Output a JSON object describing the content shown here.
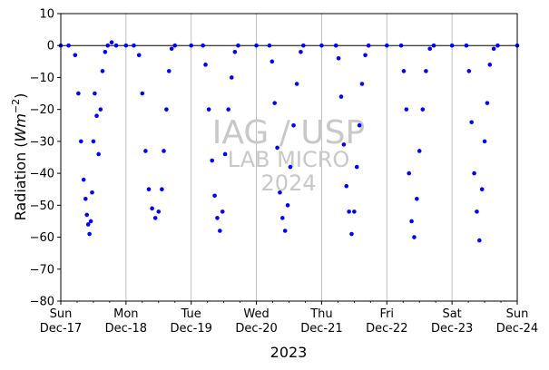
{
  "chart_data": {
    "type": "scatter",
    "title": "",
    "xlabel": "2023",
    "ylabel": "Radiation (Wm⁻²)",
    "ylabel_main": "Radiation (",
    "ylabel_unit": "Wm",
    "ylabel_exp": "−2",
    "ylabel_close": ")",
    "ylim": [
      -80,
      10
    ],
    "yticks": [
      10,
      0,
      -10,
      -20,
      -30,
      -40,
      -50,
      -60,
      -70,
      -80
    ],
    "ytick_labels": [
      "10",
      "0",
      "−10",
      "−20",
      "−30",
      "−40",
      "−50",
      "−60",
      "−70",
      "−80"
    ],
    "xlim_days": [
      0,
      7
    ],
    "xticks": [
      {
        "day": 0,
        "line1": "Sun",
        "line2": "Dec-17"
      },
      {
        "day": 1,
        "line1": "Mon",
        "line2": "Dec-18"
      },
      {
        "day": 2,
        "line1": "Tue",
        "line2": "Dec-19"
      },
      {
        "day": 3,
        "line1": "Wed",
        "line2": "Dec-20"
      },
      {
        "day": 4,
        "line1": "Thu",
        "line2": "Dec-21"
      },
      {
        "day": 5,
        "line1": "Fri",
        "line2": "Dec-22"
      },
      {
        "day": 6,
        "line1": "Sat",
        "line2": "Dec-23"
      },
      {
        "day": 7,
        "line1": "Sun",
        "line2": "Dec-24"
      }
    ],
    "vertical_grid": true,
    "zero_line": true,
    "marker_color": "#0000ff",
    "series": [
      {
        "values": [
          {
            "day": 0.0,
            "y": 0
          },
          {
            "day": 0.12,
            "y": 0
          },
          {
            "day": 0.22,
            "y": -3
          },
          {
            "day": 0.27,
            "y": -15
          },
          {
            "day": 0.31,
            "y": -30
          },
          {
            "day": 0.35,
            "y": -42
          },
          {
            "day": 0.38,
            "y": -48
          },
          {
            "day": 0.4,
            "y": -53
          },
          {
            "day": 0.42,
            "y": -56
          },
          {
            "day": 0.44,
            "y": -59
          },
          {
            "day": 0.46,
            "y": -55
          },
          {
            "day": 0.48,
            "y": -46
          },
          {
            "day": 0.5,
            "y": -30
          },
          {
            "day": 0.52,
            "y": -15
          },
          {
            "day": 0.55,
            "y": -22
          },
          {
            "day": 0.58,
            "y": -34
          },
          {
            "day": 0.61,
            "y": -20
          },
          {
            "day": 0.64,
            "y": -8
          },
          {
            "day": 0.68,
            "y": -2
          },
          {
            "day": 0.72,
            "y": 0
          },
          {
            "day": 0.78,
            "y": 1
          },
          {
            "day": 0.85,
            "y": 0
          },
          {
            "day": 1.0,
            "y": 0
          },
          {
            "day": 1.12,
            "y": 0
          },
          {
            "day": 1.2,
            "y": -3
          },
          {
            "day": 1.25,
            "y": -15
          },
          {
            "day": 1.3,
            "y": -33
          },
          {
            "day": 1.35,
            "y": -45
          },
          {
            "day": 1.4,
            "y": -51
          },
          {
            "day": 1.45,
            "y": -54
          },
          {
            "day": 1.5,
            "y": -52
          },
          {
            "day": 1.55,
            "y": -45
          },
          {
            "day": 1.58,
            "y": -33
          },
          {
            "day": 1.62,
            "y": -20
          },
          {
            "day": 1.66,
            "y": -8
          },
          {
            "day": 1.7,
            "y": -1
          },
          {
            "day": 1.75,
            "y": 0
          },
          {
            "day": 2.0,
            "y": 0
          },
          {
            "day": 2.18,
            "y": 0
          },
          {
            "day": 2.22,
            "y": -6
          },
          {
            "day": 2.27,
            "y": -20
          },
          {
            "day": 2.32,
            "y": -36
          },
          {
            "day": 2.36,
            "y": -47
          },
          {
            "day": 2.4,
            "y": -54
          },
          {
            "day": 2.44,
            "y": -58
          },
          {
            "day": 2.48,
            "y": -52
          },
          {
            "day": 2.52,
            "y": -34
          },
          {
            "day": 2.57,
            "y": -20
          },
          {
            "day": 2.62,
            "y": -10
          },
          {
            "day": 2.67,
            "y": -2
          },
          {
            "day": 2.72,
            "y": 0
          },
          {
            "day": 3.0,
            "y": 0
          },
          {
            "day": 3.2,
            "y": 0
          },
          {
            "day": 3.24,
            "y": -5
          },
          {
            "day": 3.28,
            "y": -18
          },
          {
            "day": 3.32,
            "y": -32
          },
          {
            "day": 3.36,
            "y": -46
          },
          {
            "day": 3.4,
            "y": -54
          },
          {
            "day": 3.44,
            "y": -58
          },
          {
            "day": 3.48,
            "y": -50
          },
          {
            "day": 3.52,
            "y": -38
          },
          {
            "day": 3.57,
            "y": -25
          },
          {
            "day": 3.62,
            "y": -12
          },
          {
            "day": 3.68,
            "y": -2
          },
          {
            "day": 3.72,
            "y": 0
          },
          {
            "day": 4.0,
            "y": 0
          },
          {
            "day": 4.22,
            "y": 0
          },
          {
            "day": 4.26,
            "y": -4
          },
          {
            "day": 4.3,
            "y": -16
          },
          {
            "day": 4.34,
            "y": -31
          },
          {
            "day": 4.38,
            "y": -44
          },
          {
            "day": 4.42,
            "y": -52
          },
          {
            "day": 4.46,
            "y": -59
          },
          {
            "day": 4.5,
            "y": -52
          },
          {
            "day": 4.54,
            "y": -38
          },
          {
            "day": 4.58,
            "y": -25
          },
          {
            "day": 4.62,
            "y": -12
          },
          {
            "day": 4.67,
            "y": -3
          },
          {
            "day": 4.72,
            "y": 0
          },
          {
            "day": 5.0,
            "y": 0
          },
          {
            "day": 5.22,
            "y": 0
          },
          {
            "day": 5.26,
            "y": -8
          },
          {
            "day": 5.3,
            "y": -20
          },
          {
            "day": 5.34,
            "y": -40
          },
          {
            "day": 5.38,
            "y": -55
          },
          {
            "day": 5.42,
            "y": -60
          },
          {
            "day": 5.46,
            "y": -48
          },
          {
            "day": 5.5,
            "y": -33
          },
          {
            "day": 5.55,
            "y": -20
          },
          {
            "day": 5.6,
            "y": -8
          },
          {
            "day": 5.66,
            "y": -1
          },
          {
            "day": 5.72,
            "y": 0
          },
          {
            "day": 6.0,
            "y": 0
          },
          {
            "day": 6.22,
            "y": 0
          },
          {
            "day": 6.26,
            "y": -8
          },
          {
            "day": 6.3,
            "y": -24
          },
          {
            "day": 6.34,
            "y": -40
          },
          {
            "day": 6.38,
            "y": -52
          },
          {
            "day": 6.42,
            "y": -61
          },
          {
            "day": 6.46,
            "y": -45
          },
          {
            "day": 6.5,
            "y": -30
          },
          {
            "day": 6.54,
            "y": -18
          },
          {
            "day": 6.58,
            "y": -6
          },
          {
            "day": 6.64,
            "y": -1
          },
          {
            "day": 6.7,
            "y": 0
          },
          {
            "day": 7.0,
            "y": 0
          }
        ]
      }
    ]
  },
  "watermark": {
    "line1": "IAG / USP",
    "line2": "LAB MICRO",
    "line3": "2024"
  }
}
